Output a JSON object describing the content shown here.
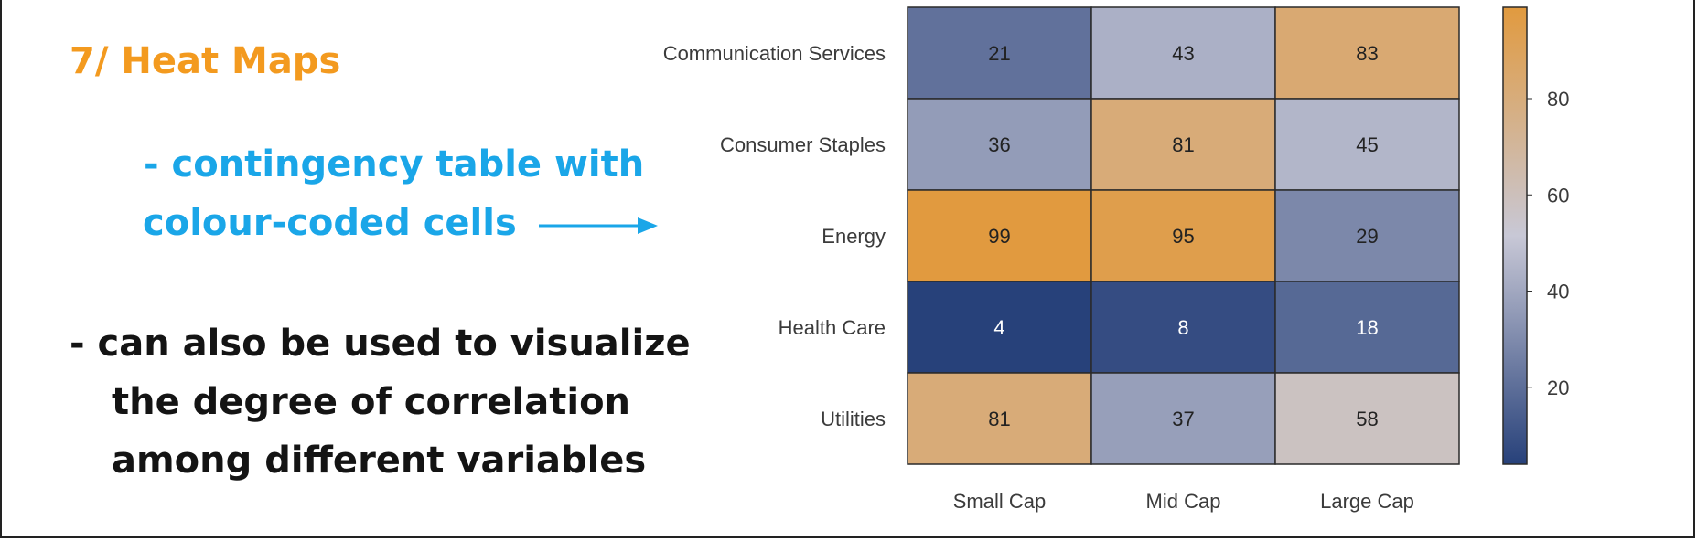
{
  "slide": {
    "title": "7/ Heat Maps",
    "bullet1_line1": "- contingency table with",
    "bullet1_line2": "colour-coded cells",
    "bullet2_line1": "- can also be used to visualize",
    "bullet2_line2": "the degree of correlation",
    "bullet2_line3": "among different variables",
    "colors": {
      "title": "#f39a1f",
      "blue_text": "#1aa6e8",
      "body_text": "#141414"
    }
  },
  "chart_data": {
    "type": "heatmap",
    "rows": [
      "Communication Services",
      "Consumer Staples",
      "Energy",
      "Health Care",
      "Utilities"
    ],
    "columns": [
      "Small Cap",
      "Mid Cap",
      "Large Cap"
    ],
    "values": [
      [
        21,
        43,
        83
      ],
      [
        36,
        81,
        45
      ],
      [
        99,
        95,
        29
      ],
      [
        4,
        8,
        18
      ],
      [
        81,
        37,
        58
      ]
    ],
    "colorbar": {
      "ticks": [
        20,
        40,
        60,
        80
      ],
      "range": [
        4,
        99
      ],
      "low_color": "#27417a",
      "mid_color": "#c8c8d6",
      "high_color": "#e19a3f"
    }
  }
}
